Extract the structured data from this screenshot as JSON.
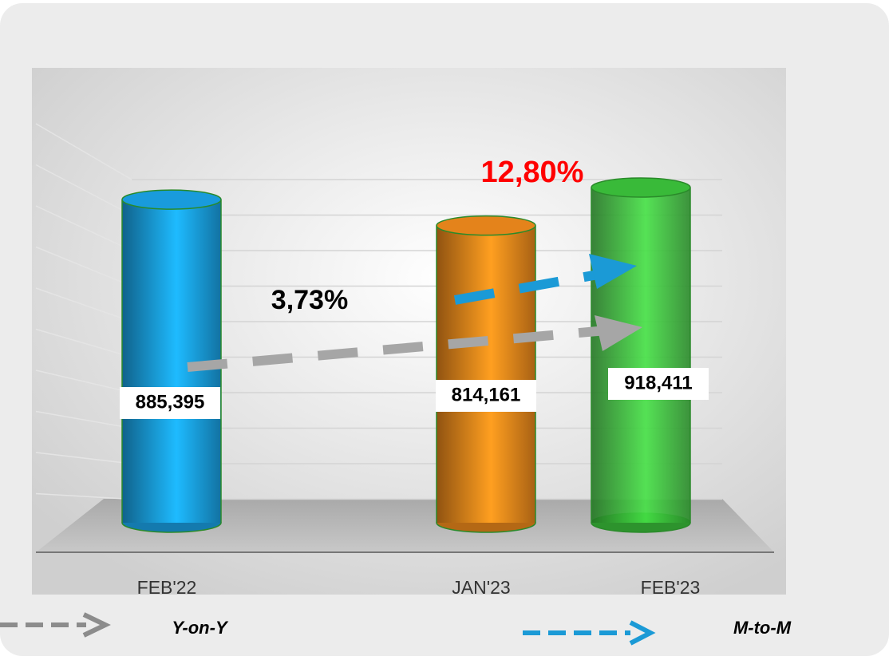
{
  "chart_data": {
    "type": "bar",
    "categories": [
      "FEB'22",
      "JAN'23",
      "FEB'23"
    ],
    "values": [
      885395,
      814161,
      918411
    ],
    "value_labels": [
      "885,395",
      "814,161",
      "918,411"
    ],
    "colors": [
      "#1aa3e8",
      "#f08a1c",
      "#3cc43c"
    ],
    "annotations": [
      "3,73%",
      "12,80%"
    ],
    "annotation_colors": [
      "#000000",
      "#ff0000"
    ],
    "legend": [
      {
        "name": "Y-on-Y",
        "color": "#a6a6a6"
      },
      {
        "name": "M-to-M",
        "color": "#1b9ad6"
      }
    ],
    "grid": true
  }
}
